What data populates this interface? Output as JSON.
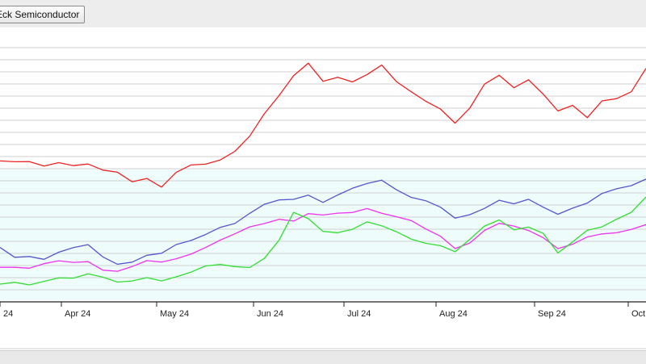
{
  "legend": {
    "label": "Eck Semiconductor"
  },
  "colors": {
    "red": "#ee2222",
    "blue": "#5555cc",
    "magenta": "#ee33ee",
    "green": "#33dd33",
    "band": "#eefcfc"
  },
  "chart_data": {
    "type": "line",
    "title": "",
    "xlabel": "",
    "ylabel": "",
    "grid": true,
    "x_tick_labels": [
      "24",
      "Apr 24",
      "May 24",
      "Jun 24",
      "Jul 24",
      "Aug 24",
      "Sep 24",
      "Oct 24"
    ],
    "x_tick_positions": [
      0,
      3,
      6,
      9,
      12,
      15,
      18,
      21
    ],
    "x": [
      0,
      0.5,
      1,
      1.5,
      2,
      2.5,
      3,
      3.5,
      4,
      4.5,
      5,
      5.5,
      6,
      6.5,
      7,
      7.5,
      8,
      8.5,
      9,
      9.5,
      10,
      10.5,
      11,
      11.5,
      12,
      12.5,
      13,
      13.5,
      14,
      14.5,
      15,
      15.5,
      16,
      16.5,
      17,
      17.5,
      18,
      18.5,
      19,
      19.5,
      20,
      20.5,
      21,
      21.5,
      22
    ],
    "ylim": [
      0,
      100
    ],
    "series": [
      {
        "color": "red",
        "values": [
          52,
          51,
          51,
          50,
          52,
          51,
          51,
          48,
          47,
          44,
          46,
          43,
          48,
          50,
          50,
          52,
          56,
          62,
          70,
          76,
          83,
          88,
          82,
          84,
          82,
          84,
          87,
          81,
          78,
          75,
          72,
          66,
          71,
          80,
          84,
          80,
          83,
          77,
          70,
          72,
          68,
          75,
          76,
          78,
          86
        ]
      },
      {
        "color": "blue",
        "values": [
          19,
          16,
          17,
          16,
          18,
          19,
          20,
          16,
          14,
          15,
          17,
          17,
          20,
          22,
          25,
          28,
          29,
          32,
          35,
          37,
          38,
          40,
          37,
          39,
          41,
          43,
          45,
          42,
          39,
          37,
          34,
          30,
          32,
          35,
          38,
          36,
          37,
          34,
          32,
          35,
          37,
          40,
          41,
          42,
          45
        ]
      },
      {
        "color": "magenta",
        "values": [
          13,
          13,
          12,
          13,
          14,
          14,
          15,
          12,
          11,
          12,
          14,
          14,
          16,
          18,
          20,
          22,
          24,
          27,
          29,
          31,
          30,
          32,
          31,
          32,
          33,
          35,
          33,
          31,
          29,
          26,
          24,
          20,
          22,
          26,
          28,
          27,
          26,
          24,
          20,
          21,
          23,
          24,
          25,
          27,
          29
        ]
      },
      {
        "color": "green",
        "values": [
          6,
          6,
          5,
          7,
          9,
          9,
          10,
          8,
          6,
          7,
          9,
          8,
          9,
          10,
          12,
          13,
          13,
          13,
          16,
          22,
          32,
          30,
          26,
          26,
          27,
          29,
          27,
          25,
          23,
          22,
          21,
          18,
          22,
          27,
          30,
          27,
          28,
          25,
          17,
          21,
          26,
          28,
          31,
          33,
          38
        ]
      }
    ]
  }
}
